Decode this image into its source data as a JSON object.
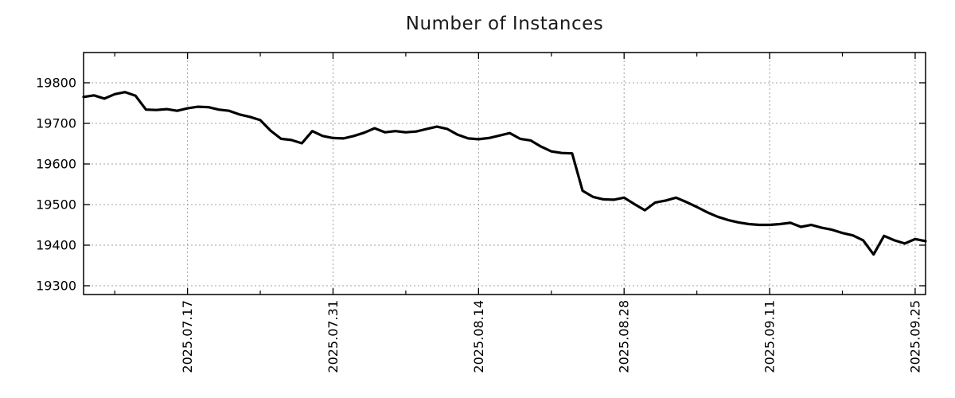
{
  "title": "Number of Instances",
  "colors": {
    "background": "#ffffff",
    "line": "#000000",
    "grid": "#a0a0a0",
    "axis": "#000000",
    "text": "#000000",
    "title_text": "#1a1a1a"
  },
  "chart_data": {
    "type": "line",
    "title": "Number of Instances",
    "xlabel": "",
    "ylabel": "",
    "grid": true,
    "legend": false,
    "ylim": [
      19278.4,
      19874.5
    ],
    "y_ticks": [
      19300,
      19400,
      19500,
      19600,
      19700,
      19800
    ],
    "x_tick_labels": [
      "2025.07.17",
      "2025.07.31",
      "2025.08.14",
      "2025.08.28",
      "2025.09.11",
      "2025.09.25"
    ],
    "x_tick_day_indices": [
      10,
      24,
      38,
      52,
      66,
      80
    ],
    "x_minor_tick_day_indices": [
      3,
      17,
      31,
      45,
      59,
      73
    ],
    "x_start_date": "2025.07.07",
    "x_end_date": "2025.09.26",
    "series": [
      {
        "name": "instances",
        "dates": [
          "2025.07.07",
          "2025.07.08",
          "2025.07.09",
          "2025.07.10",
          "2025.07.11",
          "2025.07.12",
          "2025.07.13",
          "2025.07.14",
          "2025.07.15",
          "2025.07.16",
          "2025.07.17",
          "2025.07.18",
          "2025.07.19",
          "2025.07.20",
          "2025.07.21",
          "2025.07.22",
          "2025.07.23",
          "2025.07.24",
          "2025.07.25",
          "2025.07.26",
          "2025.07.27",
          "2025.07.28",
          "2025.07.29",
          "2025.07.30",
          "2025.07.31",
          "2025.08.01",
          "2025.08.02",
          "2025.08.03",
          "2025.08.04",
          "2025.08.05",
          "2025.08.06",
          "2025.08.07",
          "2025.08.08",
          "2025.08.09",
          "2025.08.10",
          "2025.08.11",
          "2025.08.12",
          "2025.08.13",
          "2025.08.14",
          "2025.08.15",
          "2025.08.16",
          "2025.08.17",
          "2025.08.18",
          "2025.08.19",
          "2025.08.20",
          "2025.08.21",
          "2025.08.22",
          "2025.08.23",
          "2025.08.24",
          "2025.08.25",
          "2025.08.26",
          "2025.08.27",
          "2025.08.28",
          "2025.08.29",
          "2025.08.30",
          "2025.08.31",
          "2025.09.01",
          "2025.09.02",
          "2025.09.03",
          "2025.09.04",
          "2025.09.05",
          "2025.09.06",
          "2025.09.07",
          "2025.09.08",
          "2025.09.09",
          "2025.09.10",
          "2025.09.11",
          "2025.09.12",
          "2025.09.13",
          "2025.09.14",
          "2025.09.15",
          "2025.09.16",
          "2025.09.17",
          "2025.09.18",
          "2025.09.19",
          "2025.09.20",
          "2025.09.21",
          "2025.09.22",
          "2025.09.23",
          "2025.09.24",
          "2025.09.25",
          "2025.09.26"
        ],
        "values": [
          19765,
          19769,
          19761,
          19772,
          19777,
          19768,
          19734,
          19733,
          19735,
          19731,
          19737,
          19741,
          19740,
          19734,
          19731,
          19722,
          19716,
          19708,
          19682,
          19662,
          19659,
          19651,
          19681,
          19669,
          19664,
          19663,
          19669,
          19677,
          19688,
          19678,
          19681,
          19678,
          19680,
          19686,
          19692,
          19686,
          19672,
          19663,
          19661,
          19664,
          19670,
          19676,
          19662,
          19658,
          19643,
          19631,
          19627,
          19626,
          19534,
          19519,
          19513,
          19512,
          19517,
          19501,
          19486,
          19505,
          19510,
          19517,
          19506,
          19494,
          19481,
          19470,
          19462,
          19456,
          19452,
          19450,
          19450,
          19452,
          19455,
          19445,
          19450,
          19443,
          19438,
          19430,
          19424,
          19412,
          19377,
          19423,
          19412,
          19404,
          19415,
          19410
        ]
      }
    ]
  }
}
